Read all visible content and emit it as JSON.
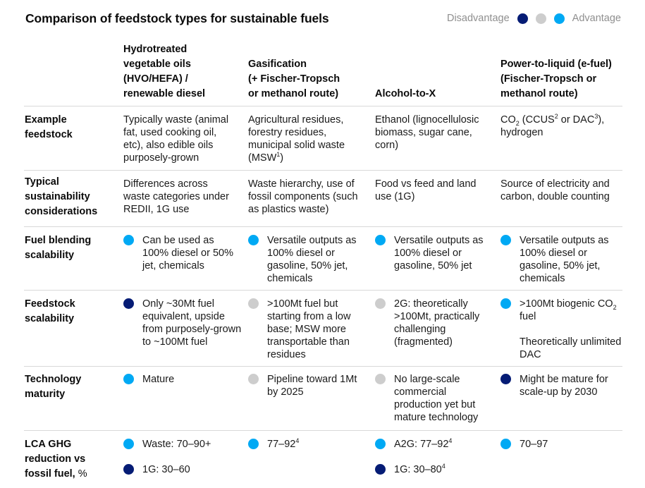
{
  "title": "Comparison of feedstock types for sustainable fuels",
  "legend": {
    "left_label": "Disadvantage",
    "right_label": "Advantage",
    "colors": {
      "disadvantage": "#051c75",
      "neutral": "#cdcdcd",
      "advantage": "#00a9f4"
    }
  },
  "columns": [
    {
      "lines": [
        "Hydrotreated",
        "vegetable oils",
        "(HVO/HEFA) /",
        "renewable diesel"
      ]
    },
    {
      "lines": [
        "Gasification",
        "(+ Fischer-Tropsch",
        "or methanol route)"
      ]
    },
    {
      "lines": [
        "Alcohol-to-X"
      ]
    },
    {
      "lines": [
        "Power-to-liquid (e-fuel)",
        "(Fischer-Tropsch or",
        "methanol route)"
      ]
    }
  ],
  "rows": {
    "example_feedstock": {
      "label": [
        "Example",
        "feedstock"
      ],
      "cells": [
        [
          "Typically waste (animal",
          "fat, used cooking oil,",
          "etc), also edible oils",
          "purposely-grown"
        ],
        [
          "Agricultural residues,",
          "forestry residues,",
          "municipal solid waste",
          "(MSW",
          "1",
          ")"
        ],
        [
          "Ethanol (lignocellulosic",
          "biomass, sugar cane,",
          "corn)"
        ],
        [
          "CO",
          "2",
          " (CCUS",
          "2",
          " or DAC",
          "3",
          "),",
          "hydrogen"
        ]
      ]
    },
    "sustainability": {
      "label": [
        "Typical",
        "sustainability",
        "considerations"
      ],
      "cells": [
        [
          "Differences across",
          "waste categories under",
          "REDII, 1G use"
        ],
        [
          "Waste hierarchy, use of",
          "fossil components (such",
          "as plastics waste)"
        ],
        [
          "Food vs feed and land",
          "use (1G)"
        ],
        [
          "Source of electricity and",
          "carbon, double counting"
        ]
      ]
    },
    "blending": {
      "label": [
        "Fuel blending",
        "scalability"
      ],
      "cells": [
        {
          "rating": "advantage",
          "lines": [
            "Can be used as",
            "100% diesel or 50%",
            "jet, chemicals"
          ]
        },
        {
          "rating": "advantage",
          "lines": [
            "Versatile outputs as",
            "100% diesel or",
            "gasoline, 50% jet,",
            "chemicals"
          ]
        },
        {
          "rating": "advantage",
          "lines": [
            "Versatile outputs as",
            "100% diesel or",
            "gasoline, 50% jet"
          ]
        },
        {
          "rating": "advantage",
          "lines": [
            "Versatile outputs as",
            "100% diesel or",
            "gasoline, 50% jet,",
            "chemicals"
          ]
        }
      ]
    },
    "feedstock_scalability": {
      "label": [
        "Feedstock",
        "scalability"
      ],
      "cells": [
        {
          "rating": "disadvantage",
          "lines": [
            "Only ~30Mt fuel",
            "equivalent, upside",
            "from purposely-grown",
            "to ~100Mt fuel"
          ]
        },
        {
          "rating": "neutral",
          "lines": [
            ">100Mt fuel but",
            "starting from a low",
            "base; MSW more",
            "transportable than",
            "residues"
          ]
        },
        {
          "rating": "neutral",
          "lines": [
            "2G: theoretically",
            ">100Mt, practically",
            "challenging",
            "(fragmented)"
          ]
        },
        {
          "rating": "advantage",
          "lines": [
            ">100Mt biogenic CO",
            "2",
            "fuel",
            "Theoretically unlimited",
            "DAC"
          ]
        }
      ]
    },
    "maturity": {
      "label": [
        "Technology",
        "maturity"
      ],
      "cells": [
        {
          "rating": "advantage",
          "lines": [
            "Mature"
          ]
        },
        {
          "rating": "neutral",
          "lines": [
            "Pipeline toward 1Mt",
            "by 2025"
          ]
        },
        {
          "rating": "neutral",
          "lines": [
            "No large-scale",
            "commercial",
            "production yet but",
            "mature technology"
          ]
        },
        {
          "rating": "disadvantage",
          "lines": [
            "Might be mature for",
            "scale-up by 2030"
          ]
        }
      ]
    },
    "lca": {
      "label": [
        "LCA GHG",
        "reduction vs",
        "fossil fuel,",
        "%"
      ],
      "cells": [
        [
          {
            "rating": "advantage",
            "text": "Waste: 70–90+"
          },
          {
            "rating": "disadvantage",
            "text": "1G: 30–60"
          }
        ],
        [
          {
            "rating": "advantage",
            "text": "77–92",
            "sup": "4"
          }
        ],
        [
          {
            "rating": "advantage",
            "text": "A2G: 77–92",
            "sup": "4"
          },
          {
            "rating": "disadvantage",
            "text": "1G: 30–80",
            "sup": "4"
          }
        ],
        [
          {
            "rating": "advantage",
            "text": "70–97"
          }
        ]
      ]
    }
  }
}
